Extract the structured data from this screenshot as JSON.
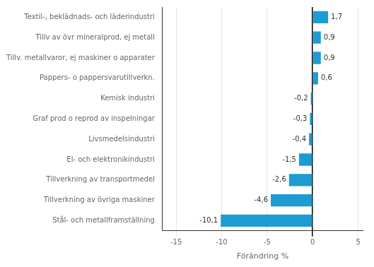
{
  "chart_data": {
    "type": "bar",
    "orientation": "horizontal",
    "categories": [
      "Stål- och metallframställning",
      "Tillverkning av övriga maskiner",
      "Tillverkning av transportmedel",
      "El- och elektronikindustri",
      "Livsmedelsindustri",
      "Graf prod o reprod av inspelningar",
      "Kemisk industri",
      "Pappers- o pappersvarutillverkn.",
      "Tillv. metallvaror, ej maskiner o apparater",
      "Tillv av övr mineralprod, ej metall",
      "Textil-, beklädnads- och läderindustri"
    ],
    "values": [
      -10.1,
      -4.6,
      -2.6,
      -1.5,
      -0.4,
      -0.3,
      -0.2,
      0.6,
      0.9,
      0.9,
      1.7
    ],
    "value_labels": [
      "-10,1",
      "-4,6",
      "-2,6",
      "-1,5",
      "-0,4",
      "-0,3",
      "-0,2",
      "0,6",
      "0,9",
      "0,9",
      "1,7"
    ],
    "data_labels": true,
    "color": "#1d9cd3",
    "xlabel": "Förändring %",
    "xlim": [
      -16.5,
      5.5
    ],
    "xticks": [
      -15,
      -10,
      -5,
      0,
      5
    ],
    "grid": true
  }
}
